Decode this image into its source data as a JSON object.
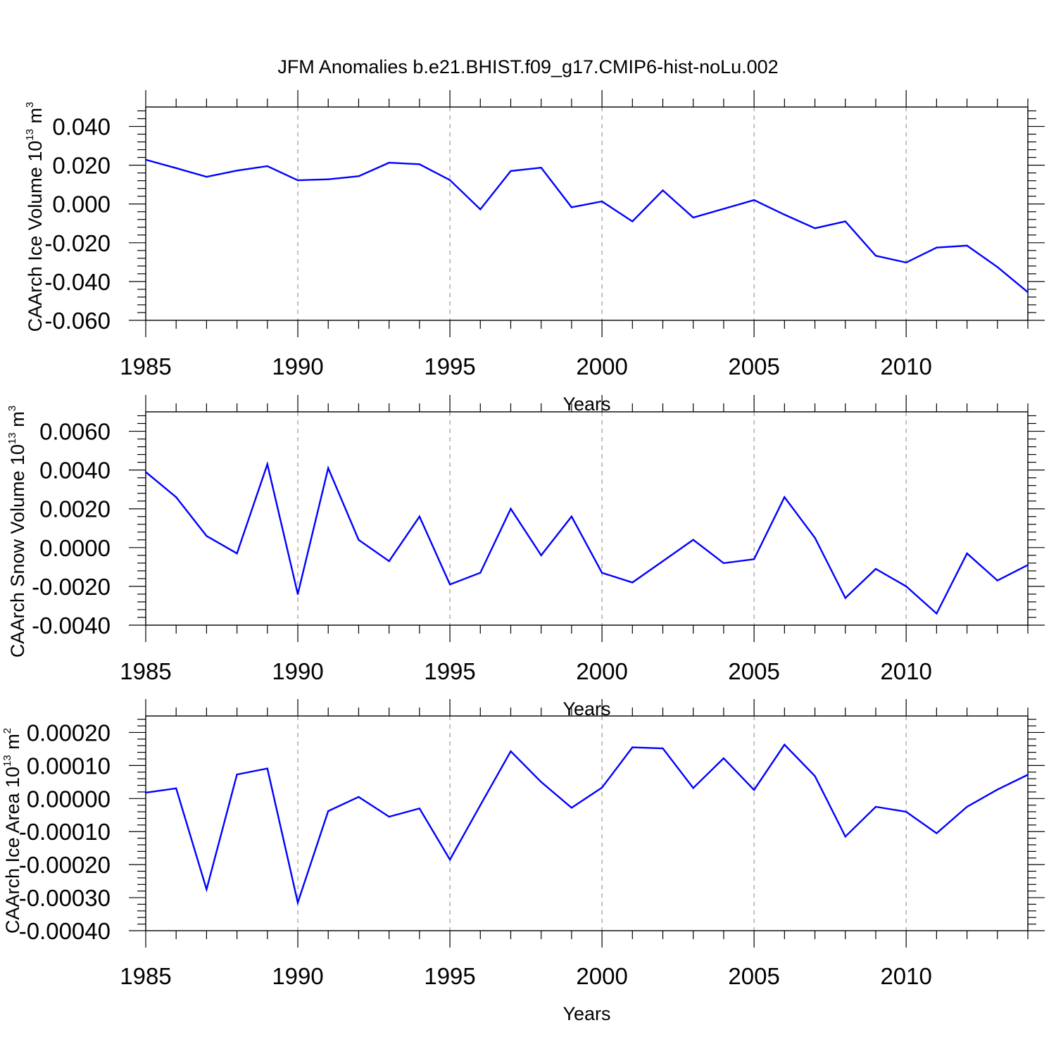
{
  "figure_title": "JFM Anomalies b.e21.BHIST.f09_g17.CMIP6-hist-noLu.002",
  "line_color": "#0000ff",
  "chart_data": [
    {
      "type": "line",
      "title": "JFM Anomalies b.e21.BHIST.f09_g17.CMIP6-hist-noLu.002",
      "xlabel": "Years",
      "ylabel": "CAArch Ice Volume 10",
      "ylabel_exp": "13",
      "ylabel_unit": " m",
      "ylabel_unit_exp": "3",
      "xlim": [
        1985,
        2014
      ],
      "ylim": [
        -0.06,
        0.05
      ],
      "xticks": [
        1985,
        1990,
        1995,
        2000,
        2005,
        2010
      ],
      "xtick_labels": [
        "1985",
        "1990",
        "1995",
        "2000",
        "2005",
        "2010"
      ],
      "yticks": [
        -0.06,
        -0.04,
        -0.02,
        0.0,
        0.02,
        0.04
      ],
      "ytick_labels": [
        "-0.060",
        "-0.040",
        "-0.020",
        "0.000",
        "0.020",
        "0.040"
      ],
      "x": [
        1985,
        1986,
        1987,
        1988,
        1989,
        1990,
        1991,
        1992,
        1993,
        1994,
        1995,
        1996,
        1997,
        1998,
        1999,
        2000,
        2001,
        2002,
        2003,
        2004,
        2005,
        2006,
        2007,
        2008,
        2009,
        2010,
        2011,
        2012,
        2013,
        2014
      ],
      "values": [
        0.0228,
        0.0185,
        0.014,
        0.0172,
        0.0195,
        0.0122,
        0.0127,
        0.0143,
        0.0213,
        0.0205,
        0.0123,
        -0.0028,
        0.017,
        0.0187,
        -0.0017,
        0.0013,
        -0.009,
        0.007,
        -0.007,
        -0.0025,
        0.002,
        -0.0055,
        -0.0125,
        -0.009,
        -0.0267,
        -0.0302,
        -0.0225,
        -0.0215,
        -0.0325,
        -0.0455
      ]
    },
    {
      "type": "line",
      "xlabel": "Years",
      "ylabel": "CAArch Snow Volume 10",
      "ylabel_exp": "13",
      "ylabel_unit": " m",
      "ylabel_unit_exp": "3",
      "xlim": [
        1985,
        2014
      ],
      "ylim": [
        -0.004,
        0.007
      ],
      "xticks": [
        1985,
        1990,
        1995,
        2000,
        2005,
        2010
      ],
      "xtick_labels": [
        "1985",
        "1990",
        "1995",
        "2000",
        "2005",
        "2010"
      ],
      "yticks": [
        -0.004,
        -0.002,
        0.0,
        0.002,
        0.004,
        0.006
      ],
      "ytick_labels": [
        "-0.0040",
        "-0.0020",
        "0.0000",
        "0.0020",
        "0.0040",
        "0.0060"
      ],
      "x": [
        1985,
        1986,
        1987,
        1988,
        1989,
        1990,
        1991,
        1992,
        1993,
        1994,
        1995,
        1996,
        1997,
        1998,
        1999,
        2000,
        2001,
        2002,
        2003,
        2004,
        2005,
        2006,
        2007,
        2008,
        2009,
        2010,
        2011,
        2012,
        2013,
        2014
      ],
      "values": [
        0.0039,
        0.0026,
        0.0006,
        -0.0003,
        0.0043,
        -0.0024,
        0.0041,
        0.0004,
        -0.0007,
        0.0016,
        -0.0019,
        -0.0013,
        0.002,
        -0.0004,
        0.0016,
        -0.0013,
        -0.0018,
        -0.0007,
        0.0004,
        -0.0008,
        -0.0006,
        0.0026,
        0.0005,
        -0.0026,
        -0.0011,
        -0.002,
        -0.0034,
        -0.0003,
        -0.0017,
        -0.0009
      ]
    },
    {
      "type": "line",
      "xlabel": "Years",
      "ylabel": "CAArch Ice Area 10",
      "ylabel_exp": "13",
      "ylabel_unit": " m",
      "ylabel_unit_exp": "2",
      "xlim": [
        1985,
        2014
      ],
      "ylim": [
        -0.0004,
        0.00025
      ],
      "xticks": [
        1985,
        1990,
        1995,
        2000,
        2005,
        2010
      ],
      "xtick_labels": [
        "1985",
        "1990",
        "1995",
        "2000",
        "2005",
        "2010"
      ],
      "yticks": [
        -0.0004,
        -0.0003,
        -0.0002,
        -0.0001,
        0.0,
        0.0001,
        0.0002
      ],
      "ytick_labels": [
        "-0.00040",
        "-0.00030",
        "-0.00020",
        "-0.00010",
        "0.00000",
        "0.00010",
        "0.00020"
      ],
      "x": [
        1985,
        1986,
        1987,
        1988,
        1989,
        1990,
        1991,
        1992,
        1993,
        1994,
        1995,
        1996,
        1997,
        1998,
        1999,
        2000,
        2001,
        2002,
        2003,
        2004,
        2005,
        2006,
        2007,
        2008,
        2009,
        2010,
        2011,
        2012,
        2013,
        2014
      ],
      "values": [
        1.8e-05,
        3.1e-05,
        -0.000275,
        7.3e-05,
        9.1e-05,
        -0.000315,
        -3.8e-05,
        5e-06,
        -5.5e-05,
        -3e-05,
        -0.000185,
        -2e-05,
        0.000143,
        5e-05,
        -2.8e-05,
        3.3e-05,
        0.000155,
        0.000152,
        3.2e-05,
        0.000122,
        2.6e-05,
        0.000163,
        6.8e-05,
        -0.000115,
        -2.5e-05,
        -4e-05,
        -0.000105,
        -2.5e-05,
        2.7e-05,
        7.2e-05
      ]
    }
  ]
}
